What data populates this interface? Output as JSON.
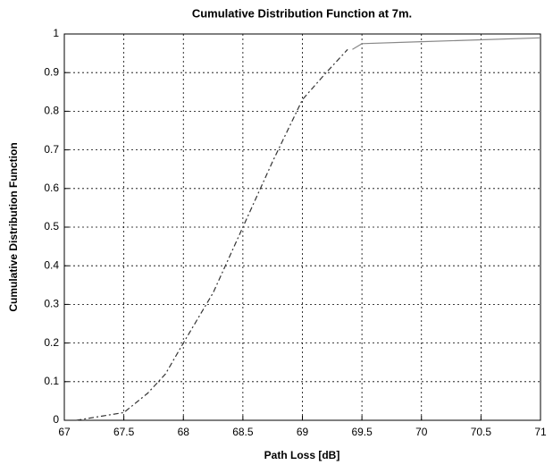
{
  "chart_data": {
    "type": "line",
    "title": "Cumulative Distribution Function at 7m.",
    "xlabel": "Path Loss [dB]",
    "ylabel": "Cumulative Distribution Function",
    "xlim": [
      67,
      71
    ],
    "xticks": [
      67,
      67.5,
      68,
      68.5,
      69,
      69.5,
      70,
      70.5,
      71
    ],
    "ylim": [
      0,
      1
    ],
    "yticks": [
      0,
      0.1,
      0.2,
      0.3,
      0.4,
      0.5,
      0.6,
      0.7,
      0.8,
      0.9,
      1
    ],
    "grid": true,
    "series": [
      {
        "color": "#333333",
        "dash": "6 3 2 3",
        "x": [
          67.1,
          67.3,
          67.5,
          67.7,
          67.85,
          68,
          68.25,
          68.5,
          68.75,
          69,
          69.2,
          69.38
        ],
        "values": [
          0,
          0.01,
          0.02,
          0.07,
          0.12,
          0.2,
          0.33,
          0.5,
          0.67,
          0.83,
          0.9,
          0.96
        ]
      },
      {
        "color": "#888888",
        "dash": "",
        "x": [
          69.42,
          69.5,
          70,
          70.5,
          71
        ],
        "values": [
          0.96,
          0.975,
          0.98,
          0.985,
          0.99
        ]
      }
    ]
  }
}
